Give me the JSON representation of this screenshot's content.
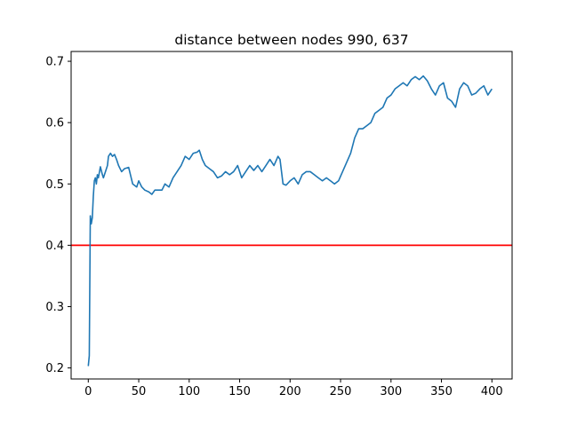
{
  "chart_data": {
    "type": "line",
    "title": "distance between nodes 990, 637",
    "xlabel": "",
    "ylabel": "",
    "xlim": [
      -17,
      420
    ],
    "ylim": [
      0.182,
      0.716
    ],
    "xticks": [
      0,
      50,
      100,
      150,
      200,
      250,
      300,
      350,
      400
    ],
    "yticks": [
      0.2,
      0.3,
      0.4,
      0.5,
      0.6,
      0.7
    ],
    "ytick_labels": [
      "0.2",
      "0.3",
      "0.4",
      "0.5",
      "0.6",
      "0.7"
    ],
    "grid": false,
    "series": [
      {
        "color": "#1f77b4",
        "x": [
          0,
          1,
          2,
          3,
          4,
          5,
          6,
          7,
          8,
          9,
          10,
          12,
          14,
          15,
          17,
          19,
          20,
          22,
          24,
          26,
          28,
          30,
          33,
          36,
          40,
          44,
          48,
          50,
          53,
          56,
          60,
          63,
          66,
          70,
          73,
          76,
          80,
          84,
          88,
          92,
          96,
          100,
          104,
          108,
          110,
          113,
          116,
          120,
          124,
          128,
          132,
          136,
          140,
          144,
          148,
          152,
          156,
          160,
          164,
          168,
          172,
          176,
          180,
          184,
          188,
          190,
          193,
          196,
          200,
          204,
          208,
          212,
          216,
          220,
          224,
          228,
          232,
          236,
          240,
          244,
          248,
          252,
          256,
          260,
          264,
          268,
          272,
          276,
          280,
          284,
          288,
          292,
          296,
          300,
          304,
          308,
          312,
          316,
          320,
          324,
          328,
          332,
          336,
          340,
          344,
          348,
          352,
          356,
          360,
          364,
          368,
          372,
          376,
          380,
          384,
          388,
          392,
          396,
          400
        ],
        "y": [
          0.203,
          0.22,
          0.448,
          0.435,
          0.445,
          0.48,
          0.505,
          0.51,
          0.5,
          0.515,
          0.51,
          0.528,
          0.515,
          0.51,
          0.52,
          0.53,
          0.545,
          0.55,
          0.545,
          0.548,
          0.54,
          0.53,
          0.52,
          0.525,
          0.527,
          0.5,
          0.495,
          0.505,
          0.495,
          0.49,
          0.487,
          0.483,
          0.49,
          0.49,
          0.49,
          0.5,
          0.495,
          0.51,
          0.52,
          0.53,
          0.545,
          0.54,
          0.55,
          0.552,
          0.555,
          0.54,
          0.53,
          0.525,
          0.52,
          0.51,
          0.513,
          0.52,
          0.515,
          0.52,
          0.53,
          0.51,
          0.52,
          0.53,
          0.522,
          0.53,
          0.52,
          0.53,
          0.54,
          0.53,
          0.545,
          0.54,
          0.5,
          0.498,
          0.505,
          0.51,
          0.5,
          0.515,
          0.52,
          0.52,
          0.515,
          0.51,
          0.505,
          0.51,
          0.505,
          0.5,
          0.505,
          0.52,
          0.535,
          0.55,
          0.575,
          0.59,
          0.59,
          0.595,
          0.6,
          0.615,
          0.62,
          0.625,
          0.64,
          0.645,
          0.655,
          0.66,
          0.665,
          0.66,
          0.67,
          0.675,
          0.67,
          0.676,
          0.668,
          0.655,
          0.645,
          0.66,
          0.665,
          0.64,
          0.635,
          0.625,
          0.655,
          0.665,
          0.66,
          0.645,
          0.648,
          0.655,
          0.66,
          0.645,
          0.655
        ]
      }
    ],
    "hlines": [
      {
        "y": 0.4,
        "color": "#ff0000"
      }
    ]
  }
}
